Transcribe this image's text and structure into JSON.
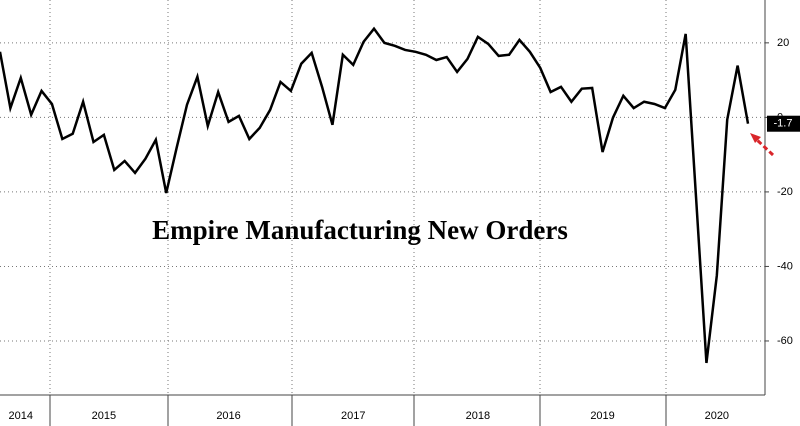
{
  "chart_data": {
    "type": "line",
    "title": "Empire Manufacturing New Orders",
    "categories": [
      null,
      null,
      "2014",
      null,
      null,
      null,
      null,
      null,
      null,
      null,
      "2015",
      null,
      null,
      null,
      null,
      null,
      null,
      null,
      null,
      null,
      null,
      null,
      "2016",
      null,
      null,
      null,
      null,
      null,
      null,
      null,
      null,
      null,
      null,
      null,
      "2017",
      null,
      null,
      null,
      null,
      null,
      null,
      null,
      null,
      null,
      null,
      null,
      "2018",
      null,
      null,
      null,
      null,
      null,
      null,
      null,
      null,
      null,
      null,
      null,
      "2019",
      null,
      null,
      null,
      null,
      null,
      null,
      null,
      null,
      null,
      null,
      "2020",
      null,
      null,
      null
    ],
    "values": [
      17.6,
      2.5,
      10.6,
      0.7,
      7.1,
      3.6,
      -5.8,
      -4.4,
      4.2,
      -6.6,
      -4.7,
      -14.1,
      -11.7,
      -14.9,
      -11.1,
      -6.0,
      -20.3,
      -8.2,
      3.4,
      10.9,
      -2.3,
      6.8,
      -1.2,
      0.4,
      -5.8,
      -2.8,
      2.0,
      9.5,
      7.1,
      14.4,
      17.3,
      8.2,
      -2.0,
      16.8,
      14.1,
      20.3,
      23.8,
      20.0,
      19.2,
      18.1,
      17.6,
      16.8,
      15.4,
      16.2,
      12.2,
      15.7,
      21.6,
      19.7,
      16.5,
      16.8,
      20.8,
      17.6,
      13.3,
      6.8,
      8.2,
      4.2,
      7.7,
      7.9,
      -9.3,
      -0.1,
      5.8,
      2.5,
      4.2,
      3.6,
      2.5,
      7.4,
      22.4,
      -21.5,
      -65.9,
      -42.4,
      -0.6,
      13.9,
      -1.7
    ],
    "color": "#000000",
    "ylim": [
      -74.5,
      31.5
    ],
    "yticks": [
      20,
      0,
      -20,
      -40,
      -60
    ],
    "grid": true
  }
}
